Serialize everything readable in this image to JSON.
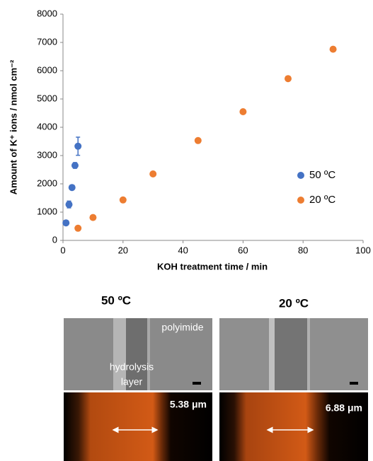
{
  "chart_data": {
    "type": "scatter",
    "x_label": "KOH treatment time / min",
    "y_label": "Amount of K⁺ ions / nmol cm⁻²",
    "xlim": [
      0,
      100
    ],
    "xticks": [
      0,
      20,
      40,
      60,
      80,
      100
    ],
    "ylim": [
      0,
      8000
    ],
    "yticks": [
      0,
      1000,
      2000,
      3000,
      4000,
      5000,
      6000,
      7000,
      8000
    ],
    "legend": "right",
    "series": [
      {
        "name": "50 ºC",
        "color": "#4472c4",
        "x": [
          1,
          2,
          3,
          4,
          5
        ],
        "values": [
          620,
          1270,
          1870,
          2650,
          3330
        ],
        "errors": [
          50,
          120,
          60,
          100,
          320
        ]
      },
      {
        "name": "20 ºC",
        "color": "#ed7d31",
        "x": [
          5,
          10,
          20,
          30,
          45,
          60,
          75,
          90
        ],
        "values": [
          430,
          810,
          1430,
          2350,
          3530,
          4550,
          5720,
          6760
        ]
      }
    ]
  },
  "panels": [
    {
      "title": "50 ºC",
      "labels": [
        "polyimide",
        "hydrolysis",
        "layer"
      ],
      "width_label": "5.38 μm"
    },
    {
      "title": "20 ºC",
      "width_label": "6.88 μm"
    }
  ]
}
